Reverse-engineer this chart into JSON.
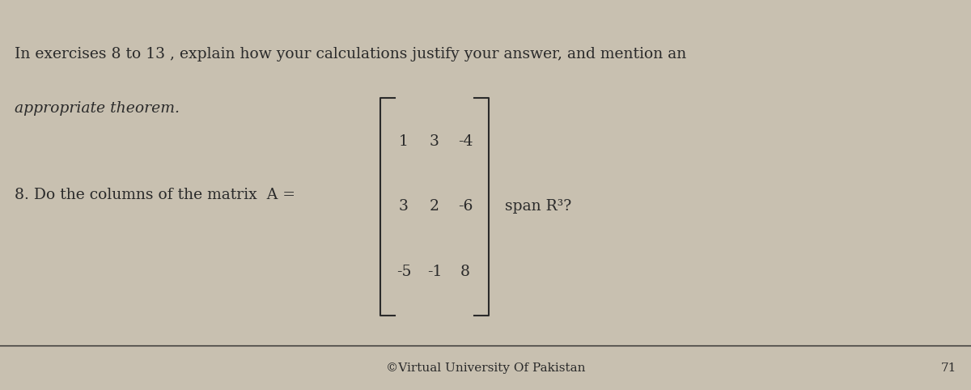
{
  "bg_color": "#c8c0b0",
  "text_color": "#2a2a2a",
  "header_text_line1": "In exercises 8 to 13 , explain how your calculations justify your answer, and mention an",
  "header_text_line2": "appropriate theorem.",
  "question_prefix": "8. Do the columns of the matrix  A =",
  "question_suffix": " span R³?",
  "matrix": [
    [
      1,
      3,
      -4
    ],
    [
      3,
      2,
      -6
    ],
    [
      -5,
      -1,
      8
    ]
  ],
  "footer_copyright": "©Virtual University Of Pakistan",
  "footer_page": "71",
  "header_fontsize": 13.5,
  "question_fontsize": 13.5,
  "matrix_fontsize": 13.5,
  "footer_fontsize": 11,
  "fig_width": 12.0,
  "fig_height": 4.82
}
